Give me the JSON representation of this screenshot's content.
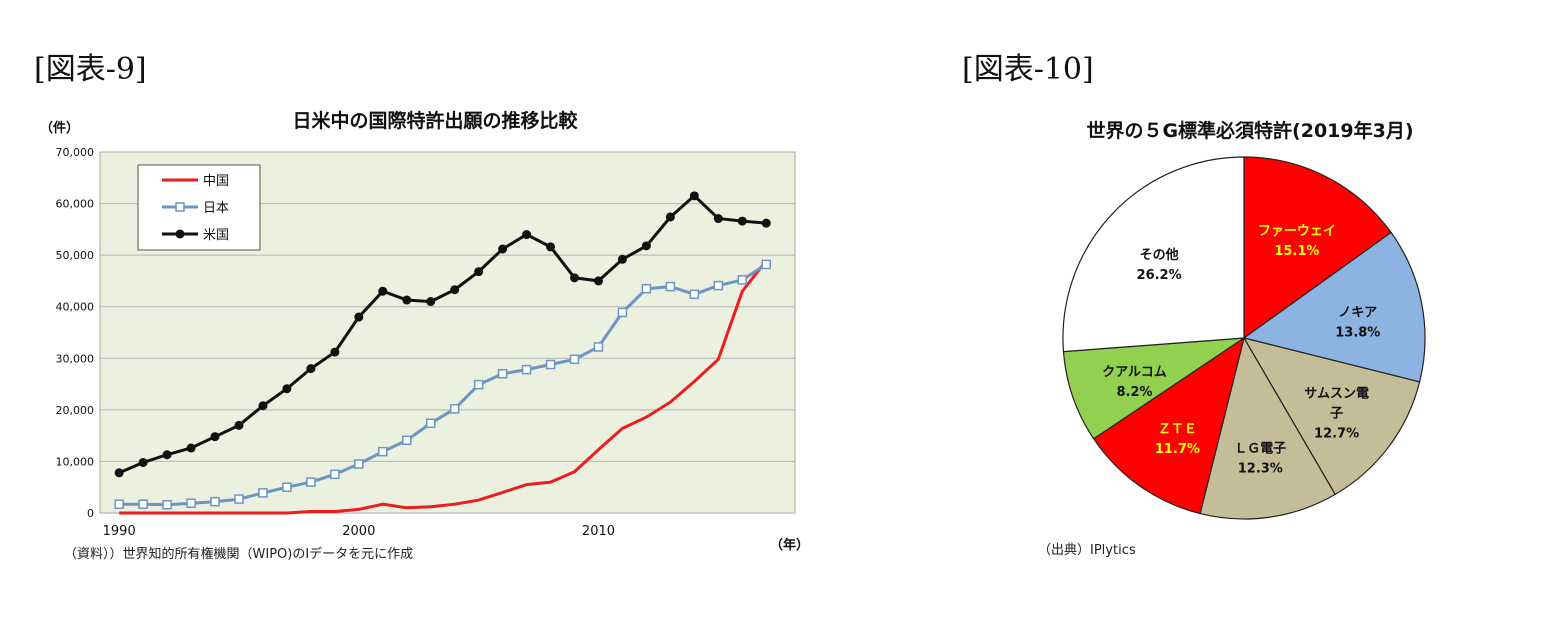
{
  "figures": {
    "fig9_label": "[図表-9]",
    "fig10_label": "[図表-10]"
  },
  "chart_data": [
    {
      "type": "line",
      "title": "日米中の国際特許出願の推移比較",
      "ylabel": "（件）",
      "xlabel": "（年）",
      "ylim": [
        0,
        70000
      ],
      "yticks": [
        "0",
        "10,000",
        "20,000",
        "30,000",
        "40,000",
        "50,000",
        "60,000",
        "70,000"
      ],
      "xticks": [
        "1990",
        "2000",
        "2010"
      ],
      "x": [
        1990,
        1991,
        1992,
        1993,
        1994,
        1995,
        1996,
        1997,
        1998,
        1999,
        2000,
        2001,
        2002,
        2003,
        2004,
        2005,
        2006,
        2007,
        2008,
        2009,
        2010,
        2011,
        2012,
        2013,
        2014,
        2015,
        2016,
        2017
      ],
      "series": [
        {
          "name": "中国",
          "color": "#ee1c1c",
          "marker": "none",
          "values": [
            0,
            0,
            0,
            0,
            0,
            0,
            0,
            0,
            300,
            300,
            700,
            1700,
            1000,
            1200,
            1700,
            2500,
            4000,
            5500,
            6000,
            8000,
            12300,
            16400,
            18600,
            21500,
            25500,
            29800,
            43000,
            48900
          ]
        },
        {
          "name": "日本",
          "color": "#6d94c3",
          "marker": "square",
          "values": [
            1700,
            1700,
            1600,
            1900,
            2200,
            2700,
            3900,
            5000,
            6000,
            7500,
            9500,
            11900,
            14100,
            17400,
            20200,
            24900,
            27000,
            27800,
            28800,
            29800,
            32200,
            38900,
            43500,
            43900,
            42400,
            44100,
            45200,
            48200
          ]
        },
        {
          "name": "米国",
          "color": "#111111",
          "marker": "circle",
          "values": [
            7800,
            9800,
            11300,
            12600,
            14800,
            17000,
            20800,
            24100,
            28000,
            31200,
            38000,
            43000,
            41300,
            41000,
            43300,
            46800,
            51200,
            54000,
            51600,
            45600,
            45000,
            49200,
            51800,
            57400,
            61500,
            57100,
            56600,
            56200
          ]
        }
      ],
      "note": "（資料））世界知的所有権機関（WIPO)のIデータを元に作成"
    },
    {
      "type": "pie",
      "title": "世界の５G標準必須特許(2019年3月)",
      "slices": [
        {
          "name": "ファーウェイ",
          "value": 15.1,
          "label": "15.1%",
          "color": "#ff0000",
          "text_color": "#ffff00"
        },
        {
          "name": "ノキア",
          "value": 13.8,
          "label": "13.8%",
          "color": "#8db3e2",
          "text_color": "#111111"
        },
        {
          "name": "サムスン電子",
          "value": 12.7,
          "label": "12.7%",
          "color": "#c4bd97",
          "text_color": "#111111"
        },
        {
          "name": "ＬＧ電子",
          "value": 12.3,
          "label": "12.3%",
          "color": "#c4bd97",
          "text_color": "#111111"
        },
        {
          "name": "ＺＴＥ",
          "value": 11.7,
          "label": "11.7%",
          "color": "#ff0000",
          "text_color": "#ffff00"
        },
        {
          "name": "クアルコム",
          "value": 8.2,
          "label": "8.2%",
          "color": "#92d050",
          "text_color": "#111111"
        },
        {
          "name": "その他",
          "value": 26.2,
          "label": "26.2%",
          "color": "#ffffff",
          "text_color": "#111111"
        }
      ],
      "note": "（出典）IPlytics"
    }
  ]
}
